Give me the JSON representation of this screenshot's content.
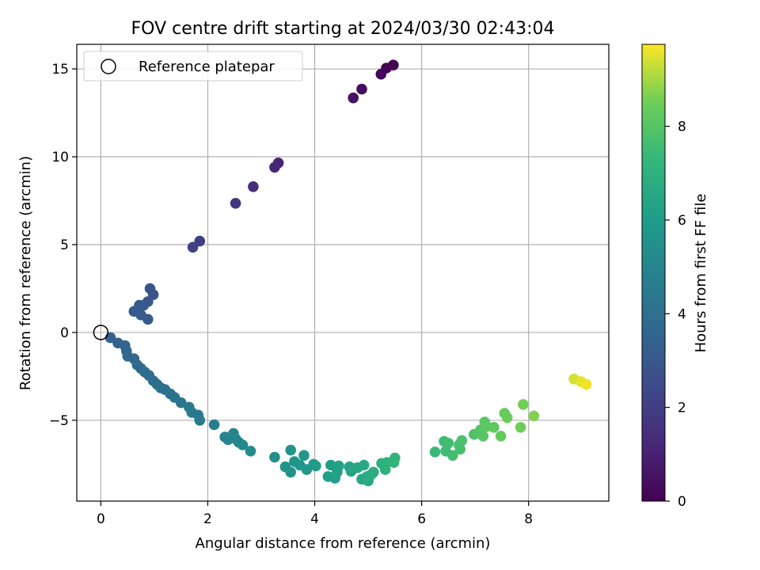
{
  "chart_data": {
    "type": "scatter",
    "title": "FOV centre drift starting at 2024/03/30 02:43:04",
    "xlabel": "Angular distance from reference (arcmin)",
    "ylabel": "Rotation from reference (arcmin)",
    "xlim": [
      -0.45,
      9.5
    ],
    "ylim": [
      -9.6,
      16.4
    ],
    "xticks": [
      0,
      2,
      4,
      6,
      8
    ],
    "yticks": [
      -5,
      0,
      5,
      10,
      15
    ],
    "grid": true,
    "legend": {
      "location": "upper-left",
      "entries": [
        "Reference platepar"
      ]
    },
    "reference_point": {
      "x": 0,
      "y": 0,
      "marker": "open-circle"
    },
    "colorbar": {
      "label": "Hours from first FF file",
      "colormap": "viridis",
      "range": [
        0,
        9.75
      ],
      "ticks": [
        0,
        2,
        4,
        6,
        8
      ]
    },
    "series": [
      {
        "points": [
          [
            5.47,
            15.22,
            0.0
          ],
          [
            5.34,
            15.05,
            0.08
          ],
          [
            5.24,
            14.7,
            0.16
          ],
          [
            4.88,
            13.85,
            0.4
          ],
          [
            4.72,
            13.35,
            0.5
          ],
          [
            3.32,
            9.65,
            1.1
          ],
          [
            3.25,
            9.4,
            1.18
          ],
          [
            2.85,
            8.3,
            1.45
          ],
          [
            2.52,
            7.35,
            1.7
          ],
          [
            1.85,
            5.2,
            2.05
          ],
          [
            1.72,
            4.85,
            2.15
          ],
          [
            0.92,
            2.5,
            2.8
          ],
          [
            0.98,
            2.15,
            2.9
          ],
          [
            0.88,
            1.75,
            2.95
          ],
          [
            0.8,
            1.55,
            3.0
          ],
          [
            0.72,
            1.55,
            3.05
          ],
          [
            0.62,
            1.2,
            3.1
          ],
          [
            0.75,
            1.0,
            3.12
          ],
          [
            0.88,
            0.75,
            3.15
          ],
          [
            0.18,
            -0.3,
            3.4
          ],
          [
            0.32,
            -0.6,
            3.5
          ],
          [
            0.45,
            -0.75,
            3.55
          ],
          [
            0.48,
            -1.05,
            3.6
          ],
          [
            0.5,
            -1.35,
            3.65
          ],
          [
            0.62,
            -1.5,
            3.7
          ],
          [
            0.68,
            -1.85,
            3.75
          ],
          [
            0.75,
            -2.05,
            3.8
          ],
          [
            0.82,
            -2.25,
            3.85
          ],
          [
            0.9,
            -2.45,
            3.9
          ],
          [
            0.98,
            -2.75,
            3.95
          ],
          [
            1.05,
            -2.95,
            4.0
          ],
          [
            1.12,
            -3.15,
            4.05
          ],
          [
            1.2,
            -3.25,
            4.1
          ],
          [
            1.3,
            -3.5,
            4.15
          ],
          [
            1.38,
            -3.7,
            4.2
          ],
          [
            1.5,
            -4.0,
            4.3
          ],
          [
            1.65,
            -4.25,
            4.4
          ],
          [
            1.7,
            -4.55,
            4.45
          ],
          [
            1.82,
            -4.7,
            4.5
          ],
          [
            1.85,
            -5.0,
            4.55
          ],
          [
            2.12,
            -5.25,
            4.7
          ],
          [
            2.32,
            -5.95,
            4.9
          ],
          [
            2.38,
            -6.1,
            4.95
          ],
          [
            2.48,
            -5.75,
            5.0
          ],
          [
            2.52,
            -6.05,
            5.05
          ],
          [
            2.58,
            -6.25,
            5.1
          ],
          [
            2.65,
            -6.4,
            5.15
          ],
          [
            2.8,
            -6.75,
            5.25
          ],
          [
            3.25,
            -7.1,
            5.45
          ],
          [
            3.45,
            -7.65,
            5.55
          ],
          [
            3.55,
            -7.95,
            5.6
          ],
          [
            3.55,
            -6.7,
            5.65
          ],
          [
            3.62,
            -7.35,
            5.7
          ],
          [
            3.72,
            -7.55,
            5.75
          ],
          [
            3.8,
            -7.0,
            5.8
          ],
          [
            3.85,
            -7.8,
            5.85
          ],
          [
            3.98,
            -7.5,
            5.95
          ],
          [
            4.02,
            -7.6,
            6.0
          ],
          [
            4.25,
            -8.2,
            6.1
          ],
          [
            4.3,
            -7.55,
            6.15
          ],
          [
            4.38,
            -8.3,
            6.2
          ],
          [
            4.42,
            -7.95,
            6.25
          ],
          [
            4.45,
            -7.6,
            6.3
          ],
          [
            4.65,
            -7.65,
            6.35
          ],
          [
            4.68,
            -7.9,
            6.4
          ],
          [
            4.72,
            -7.75,
            6.45
          ],
          [
            4.8,
            -7.7,
            6.5
          ],
          [
            4.88,
            -8.35,
            6.55
          ],
          [
            4.92,
            -7.55,
            6.6
          ],
          [
            4.98,
            -8.2,
            6.65
          ],
          [
            5.0,
            -8.45,
            6.7
          ],
          [
            5.05,
            -8.1,
            6.75
          ],
          [
            5.1,
            -7.95,
            6.8
          ],
          [
            5.25,
            -7.45,
            6.9
          ],
          [
            5.32,
            -7.8,
            6.95
          ],
          [
            5.35,
            -7.4,
            7.0
          ],
          [
            5.5,
            -7.15,
            7.1
          ],
          [
            5.48,
            -7.4,
            7.12
          ],
          [
            6.25,
            -6.8,
            7.4
          ],
          [
            6.42,
            -6.2,
            7.5
          ],
          [
            6.45,
            -6.75,
            7.55
          ],
          [
            6.5,
            -6.3,
            7.6
          ],
          [
            6.58,
            -7.0,
            7.65
          ],
          [
            6.7,
            -6.4,
            7.7
          ],
          [
            6.72,
            -6.65,
            7.75
          ],
          [
            6.75,
            -6.15,
            7.8
          ],
          [
            6.98,
            -5.8,
            7.9
          ],
          [
            7.1,
            -5.55,
            8.0
          ],
          [
            7.15,
            -5.9,
            8.05
          ],
          [
            7.18,
            -5.1,
            8.1
          ],
          [
            7.22,
            -5.35,
            8.15
          ],
          [
            7.35,
            -5.4,
            8.2
          ],
          [
            7.48,
            -5.9,
            8.3
          ],
          [
            7.55,
            -4.6,
            8.35
          ],
          [
            7.6,
            -4.85,
            8.4
          ],
          [
            7.85,
            -5.4,
            8.5
          ],
          [
            7.9,
            -4.1,
            8.55
          ],
          [
            8.1,
            -4.75,
            8.7
          ],
          [
            8.85,
            -2.65,
            9.4
          ],
          [
            8.98,
            -2.8,
            9.55
          ],
          [
            9.08,
            -2.95,
            9.65
          ]
        ]
      }
    ]
  }
}
